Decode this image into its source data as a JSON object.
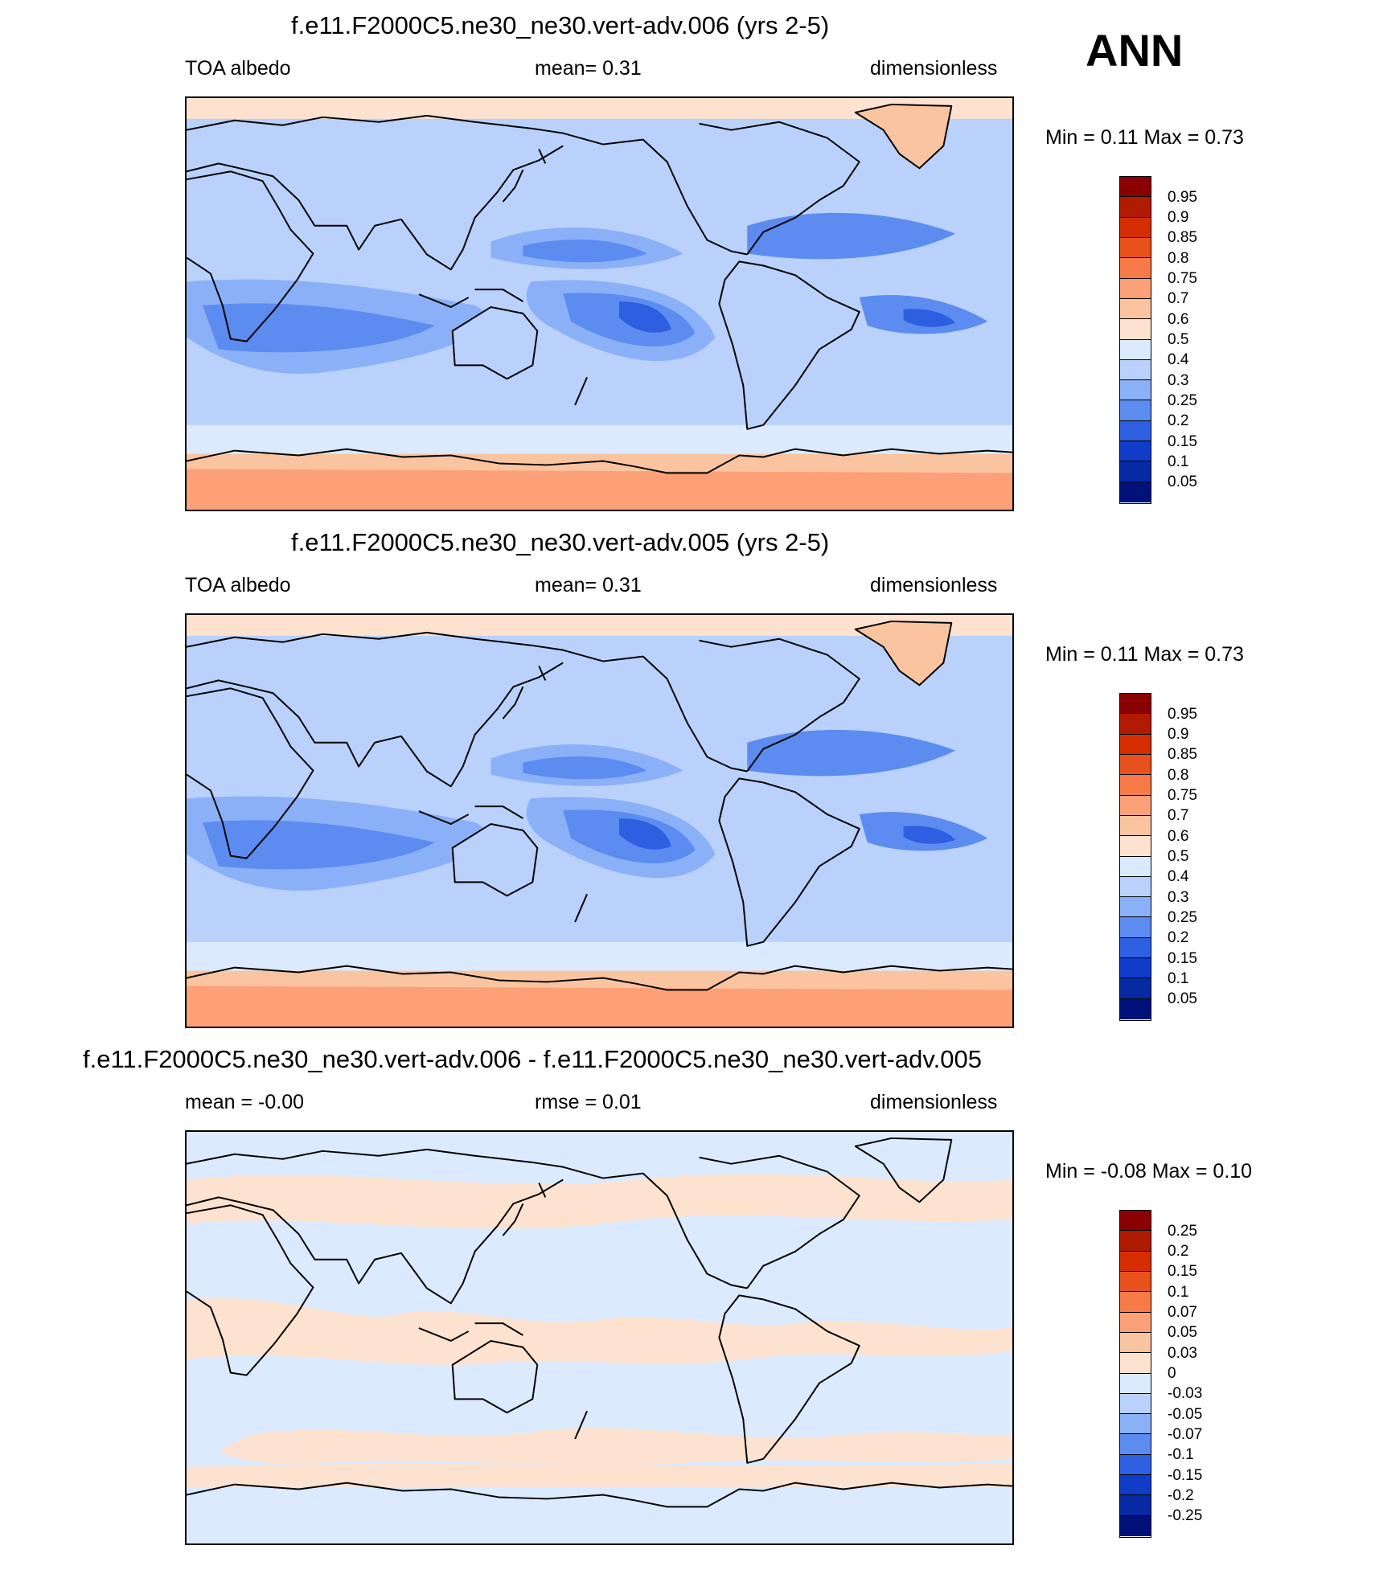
{
  "season": "ANN",
  "panels": [
    {
      "title": "f.e11.F2000C5.ne30_ne30.vert-adv.006 (yrs 2-5)",
      "left_label": "TOA albedo",
      "center_label": "mean=   0.31",
      "right_label": "dimensionless",
      "minmax": "Min =   0.11 Max =   0.73",
      "colorbar": {
        "labels": [
          "0.95",
          "0.9",
          "0.85",
          "0.8",
          "0.75",
          "0.7",
          "0.6",
          "0.5",
          "0.4",
          "0.3",
          "0.25",
          "0.2",
          "0.15",
          "0.1",
          "0.05"
        ],
        "colors": [
          "#8b0000",
          "#b01a00",
          "#d42e00",
          "#e8501c",
          "#f77a48",
          "#fca077",
          "#fbc4a0",
          "#fde3cf",
          "#dceaff",
          "#b9d1fb",
          "#8ab0f7",
          "#5c8cf0",
          "#2e5fe0",
          "#0f3cc8",
          "#062aa2",
          "#00117a"
        ]
      },
      "map_style": "absolute"
    },
    {
      "title": "f.e11.F2000C5.ne30_ne30.vert-adv.005 (yrs 2-5)",
      "left_label": "TOA albedo",
      "center_label": "mean=   0.31",
      "right_label": "dimensionless",
      "minmax": "Min =   0.11 Max =   0.73",
      "colorbar": {
        "labels": [
          "0.95",
          "0.9",
          "0.85",
          "0.8",
          "0.75",
          "0.7",
          "0.6",
          "0.5",
          "0.4",
          "0.3",
          "0.25",
          "0.2",
          "0.15",
          "0.1",
          "0.05"
        ],
        "colors": [
          "#8b0000",
          "#b01a00",
          "#d42e00",
          "#e8501c",
          "#f77a48",
          "#fca077",
          "#fbc4a0",
          "#fde3cf",
          "#dceaff",
          "#b9d1fb",
          "#8ab0f7",
          "#5c8cf0",
          "#2e5fe0",
          "#0f3cc8",
          "#062aa2",
          "#00117a"
        ]
      },
      "map_style": "absolute"
    },
    {
      "title": "f.e11.F2000C5.ne30_ne30.vert-adv.006 - f.e11.F2000C5.ne30_ne30.vert-adv.005",
      "left_label": "mean =  -0.00",
      "center_label": "rmse =   0.01",
      "right_label": "dimensionless",
      "minmax": "Min =  -0.08 Max =   0.10",
      "colorbar": {
        "labels": [
          "0.25",
          "0.2",
          "0.15",
          "0.1",
          "0.07",
          "0.05",
          "0.03",
          "0",
          "-0.03",
          "-0.05",
          "-0.07",
          "-0.1",
          "-0.15",
          "-0.2",
          "-0.25"
        ],
        "colors": [
          "#8b0000",
          "#b01a00",
          "#d42e00",
          "#e8501c",
          "#f77a48",
          "#fca077",
          "#fbc4a0",
          "#fde3cf",
          "#dceaff",
          "#b9d1fb",
          "#8ab0f7",
          "#5c8cf0",
          "#2e5fe0",
          "#0f3cc8",
          "#062aa2",
          "#00117a"
        ]
      },
      "map_style": "difference"
    }
  ]
}
